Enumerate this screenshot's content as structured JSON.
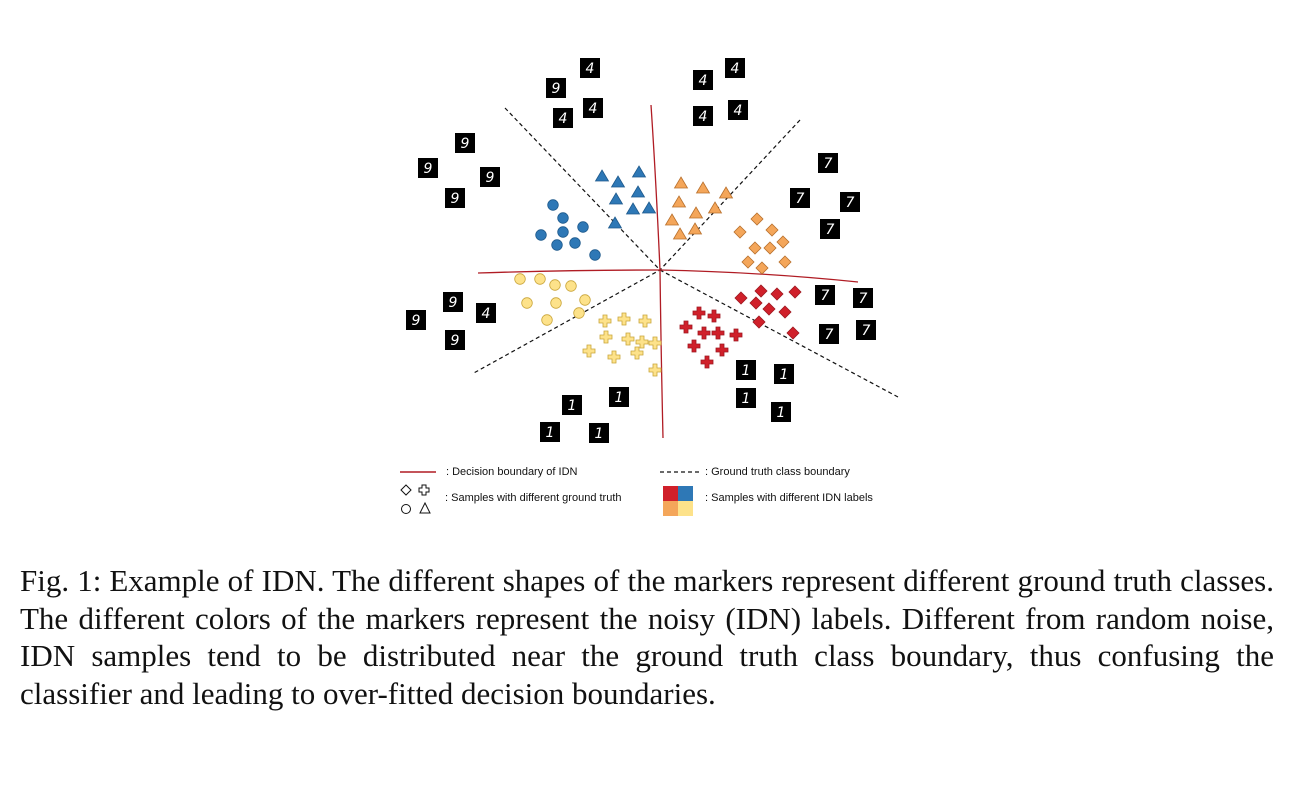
{
  "figure": {
    "digit_tiles": [
      "4",
      "9",
      "4",
      "4",
      "4",
      "4",
      "4",
      "4",
      "9",
      "9",
      "9",
      "9",
      "9",
      "4",
      "9",
      "9",
      "7",
      "7",
      "7",
      "7",
      "7",
      "7",
      "7",
      "7",
      "1",
      "1",
      "1",
      "1",
      "1",
      "1",
      "1",
      "1"
    ],
    "legend": {
      "decision_boundary": ": Decision boundary of IDN",
      "ground_truth_boundary": ": Ground truth class boundary",
      "shapes": ": Samples with different ground truth",
      "colors": ": Samples with different IDN labels"
    },
    "colors": {
      "blue": "#2e78b6",
      "orange": "#f4a65a",
      "yellow": "#fde28a",
      "red": "#d0202a",
      "boundary_red": "#b01c24"
    }
  },
  "caption": {
    "label": "Fig. 1:",
    "text": "Example of IDN. The different shapes of the markers represent different ground truth classes. The different colors of the markers represent the noisy (IDN) labels. Different from random noise, IDN samples tend to be distributed near the ground truth class boundary, thus confusing the classifier and leading to over-fitted decision boundaries."
  }
}
